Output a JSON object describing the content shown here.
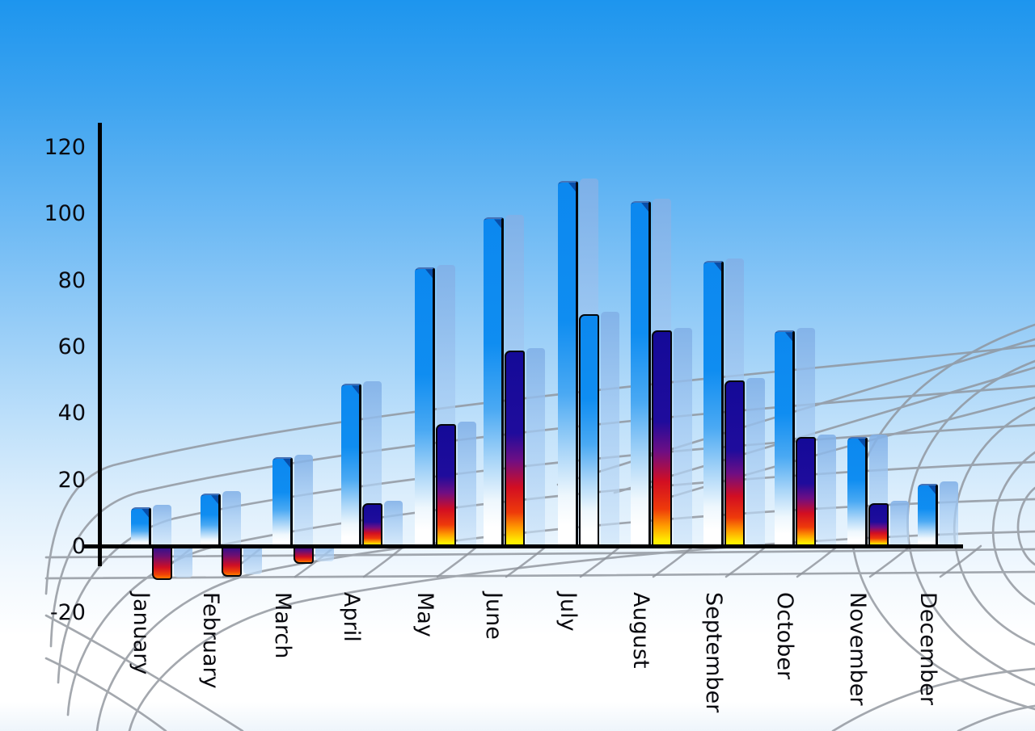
{
  "chart_data": {
    "type": "bar",
    "title": "",
    "xlabel": "",
    "ylabel": "",
    "categories": [
      "January",
      "February",
      "March",
      "April",
      "May",
      "June",
      "July",
      "August",
      "September",
      "October",
      "November",
      "December"
    ],
    "series": [
      {
        "name": "primary-blue-bars",
        "values": [
          12,
          16,
          27,
          49,
          84,
          99,
          110,
          104,
          86,
          65,
          33,
          19
        ]
      },
      {
        "name": "secondary-gradient-bars",
        "values": [
          -10,
          -9,
          -5,
          13,
          37,
          59,
          70,
          65,
          50,
          33,
          13,
          null
        ]
      }
    ],
    "ylim": [
      -20,
      120
    ],
    "yticks": [
      120,
      100,
      80,
      60,
      40,
      20,
      0,
      -20
    ],
    "legend": "none",
    "grid": "decorative gray perspective net across lower half",
    "notes": "July secondary bar is blue-gradient styled; December has no secondary bar; Jan-Mar secondary bars are negative; every bar casts a translucent light-blue offset duplicate"
  },
  "colors": {
    "sky_top": "#1d95ee",
    "sky_bottom": "#ffffff",
    "bar_blue": "#0c88ef",
    "bar_fade": "#ffffff",
    "thermo_navy": "#140a98",
    "thermo_red": "#d20e22",
    "thermo_yellow": "#ffee00",
    "shadow_bar": "#a9cbf0",
    "grid_line": "#8e939b",
    "axis": "#000000",
    "label_text": "#0a0a0f"
  }
}
